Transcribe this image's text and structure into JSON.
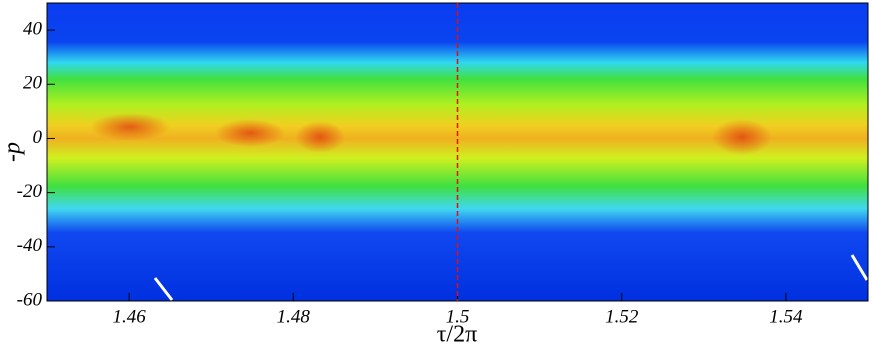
{
  "chart_data": {
    "type": "heatmap",
    "x_label": "τ/2π",
    "y_label": "-p",
    "xlim": [
      1.45,
      1.55
    ],
    "xticks": [
      1.46,
      1.48,
      1.5,
      1.52,
      1.54
    ],
    "ylim": [
      -60,
      50
    ],
    "yticks": [
      -60,
      -40,
      -20,
      0,
      20,
      40
    ],
    "reference_line": {
      "x": 1.5,
      "color": "#e01010"
    }
  }
}
